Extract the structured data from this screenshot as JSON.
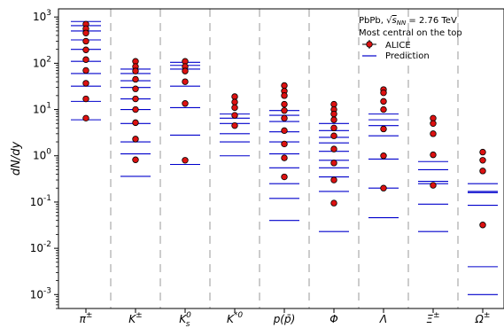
{
  "chart_data": {
    "type": "scatter",
    "ylabel": "dN/dy",
    "yscale": "log",
    "ylim": [
      0.0005,
      1500
    ],
    "yticks": [
      {
        "value": 0.001,
        "exp": "-3"
      },
      {
        "value": 0.01,
        "exp": "-2"
      },
      {
        "value": 0.1,
        "exp": "-1"
      },
      {
        "value": 1,
        "exp": "0"
      },
      {
        "value": 10,
        "exp": "1"
      },
      {
        "value": 100,
        "exp": "2"
      },
      {
        "value": 1000,
        "exp": "3"
      }
    ],
    "categories": [
      {
        "key": "pi",
        "base": "π",
        "sup": "±"
      },
      {
        "key": "K",
        "base": "K",
        "sup": "±"
      },
      {
        "key": "K0s",
        "base": "K",
        "sup": "0",
        "sub": "s"
      },
      {
        "key": "Kstar",
        "base": "K",
        "sup": "*0"
      },
      {
        "key": "p",
        "base": "p(p̄)"
      },
      {
        "key": "phi",
        "base": "Φ"
      },
      {
        "key": "Lambda",
        "base": "Λ"
      },
      {
        "key": "Xi",
        "base": "Ξ",
        "sup": "±"
      },
      {
        "key": "Omega",
        "base": "Ω",
        "sup": "±"
      }
    ],
    "annotation": {
      "line1": "PbPb, √s_NN = 2.76 TeV",
      "line1_prefix": "PbPb, ",
      "line1_sym": "s",
      "line1_sub": "NN",
      "line1_suffix": " = 2.76 TeV",
      "line2": "Most central on the top"
    },
    "legend": {
      "position": "top-right",
      "alice": "ALICE",
      "prediction": "Prediction"
    },
    "colors": {
      "marker_fill": "#dd1111",
      "marker_edge": "#000000",
      "prediction": "#0000cc",
      "separator": "#cccccc"
    },
    "series": [
      {
        "name": "ALICE",
        "values": [
          [
            700,
            560,
            450,
            300,
            195,
            120,
            70,
            37,
            17,
            6.5
          ],
          [
            110,
            85,
            68,
            45,
            28,
            17,
            10,
            5.2,
            2.3,
            0.82
          ],
          [
            110,
            85,
            68,
            40,
            13.5,
            0.8
          ],
          [
            19,
            14.5,
            11,
            7.5,
            4.5
          ],
          [
            33,
            25,
            20,
            13,
            9.5,
            6.5,
            3.5,
            1.8,
            0.9,
            0.35
          ],
          [
            13,
            10,
            8,
            6,
            4,
            2.7,
            1.4,
            0.7,
            0.3,
            0.095
          ],
          [
            27,
            23,
            15,
            10,
            3.8,
            1.0,
            0.2
          ],
          [
            6.5,
            5,
            3,
            1.05,
            0.23
          ],
          [
            1.2,
            0.8,
            0.47,
            0.032
          ]
        ]
      },
      {
        "name": "Prediction",
        "values": [
          [
            800,
            650,
            500,
            320,
            200,
            110,
            60,
            32,
            15,
            6
          ],
          [
            75,
            60,
            42,
            30,
            17,
            10,
            5,
            2,
            1.1,
            0.36
          ],
          [
            105,
            90,
            75,
            32,
            11,
            2.8,
            0.65
          ],
          [
            8,
            6.5,
            5,
            3,
            2,
            1
          ],
          [
            9.5,
            7.5,
            5.5,
            3.3,
            2,
            1.1,
            0.55,
            0.25,
            0.12,
            0.04
          ],
          [
            5,
            3.5,
            2.5,
            1.9,
            1.25,
            0.8,
            0.55,
            0.35,
            0.17,
            0.023
          ],
          [
            8,
            6,
            4.5,
            2.7,
            0.85,
            0.2,
            0.046
          ],
          [
            0.75,
            0.5,
            0.28,
            0.25,
            0.09,
            0.023
          ],
          [
            0.25,
            0.17,
            0.16,
            0.085,
            0.004,
            0.001
          ]
        ]
      }
    ]
  }
}
